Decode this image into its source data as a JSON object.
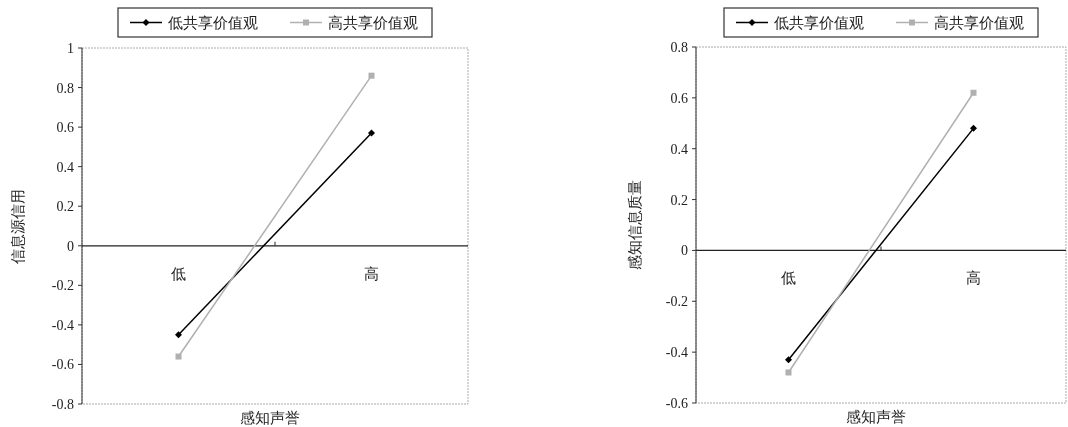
{
  "chart_data": [
    {
      "type": "line",
      "xlabel": "感知声誉",
      "ylabel": "信息源信用",
      "categories": [
        "低",
        "高"
      ],
      "series": [
        {
          "name": "低共享价值观",
          "color": "#000000",
          "marker": "diamond",
          "values": [
            -0.45,
            0.57
          ]
        },
        {
          "name": "高共享价值观",
          "color": "#b0b0b0",
          "marker": "square",
          "values": [
            -0.56,
            0.86
          ]
        }
      ],
      "ylim": [
        -0.8,
        1
      ],
      "yticks": [
        -0.8,
        -0.6,
        -0.4,
        -0.2,
        0,
        0.2,
        0.4,
        0.6,
        0.8,
        1
      ],
      "grid": false,
      "legend": "top"
    },
    {
      "type": "line",
      "xlabel": "感知声誉",
      "ylabel": "感知信息质量",
      "categories": [
        "低",
        "高"
      ],
      "series": [
        {
          "name": "低共享价值观",
          "color": "#000000",
          "marker": "diamond",
          "values": [
            -0.43,
            0.48
          ]
        },
        {
          "name": "高共享价值观",
          "color": "#b0b0b0",
          "marker": "square",
          "values": [
            -0.48,
            0.62
          ]
        }
      ],
      "ylim": [
        -0.6,
        0.8
      ],
      "yticks": [
        -0.6,
        -0.4,
        -0.2,
        0,
        0.2,
        0.4,
        0.6,
        0.8
      ],
      "grid": false,
      "legend": "top"
    }
  ]
}
